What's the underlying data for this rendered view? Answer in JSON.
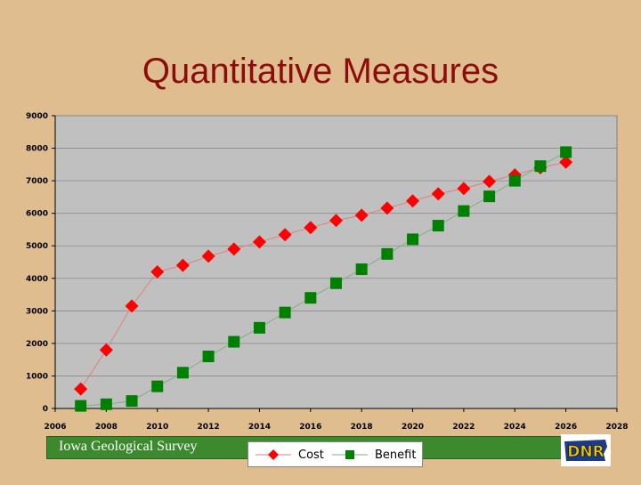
{
  "slide": {
    "title": "Quantitative Measures",
    "footer_text": "Iowa Geological Survey",
    "logo_text": "DNR",
    "background_color": "#dfbd8f",
    "title_color": "#8b0c0c",
    "footer_color": "#3d8a2e"
  },
  "chart_data": {
    "type": "scatter",
    "title": "",
    "xlabel": "",
    "ylabel": "",
    "xlim": [
      2006,
      2028
    ],
    "ylim": [
      0,
      9000
    ],
    "xticks": [
      "2006",
      "2008",
      "2010",
      "2012",
      "2014",
      "2016",
      "2018",
      "2020",
      "2022",
      "2024",
      "2026",
      "2028"
    ],
    "yticks": [
      "0",
      "1000",
      "2000",
      "3000",
      "4000",
      "5000",
      "6000",
      "7000",
      "8000",
      "9000"
    ],
    "grid": "horizontal",
    "legend_position": "bottom",
    "plot_background": "#c0c0c0",
    "series": [
      {
        "name": "Cost",
        "color": "#ff0000",
        "marker": "diamond",
        "line_color": "#e08080",
        "x": [
          2007,
          2008,
          2009,
          2010,
          2011,
          2012,
          2013,
          2014,
          2015,
          2016,
          2017,
          2018,
          2019,
          2020,
          2021,
          2022,
          2023,
          2024,
          2025,
          2026
        ],
        "y": [
          600,
          1800,
          3150,
          4200,
          4400,
          4680,
          4900,
          5120,
          5340,
          5560,
          5780,
          5940,
          6160,
          6380,
          6600,
          6760,
          6980,
          7180,
          7400,
          7570
        ]
      },
      {
        "name": "Benefit",
        "color": "#008000",
        "marker": "square",
        "line_color": "#80b080",
        "x": [
          2007,
          2008,
          2009,
          2010,
          2011,
          2012,
          2013,
          2014,
          2015,
          2016,
          2017,
          2018,
          2019,
          2020,
          2021,
          2022,
          2023,
          2024,
          2025,
          2026
        ],
        "y": [
          80,
          130,
          230,
          680,
          1100,
          1600,
          2050,
          2480,
          2950,
          3400,
          3850,
          4280,
          4750,
          5200,
          5620,
          6070,
          6520,
          7000,
          7450,
          7880
        ]
      }
    ]
  }
}
